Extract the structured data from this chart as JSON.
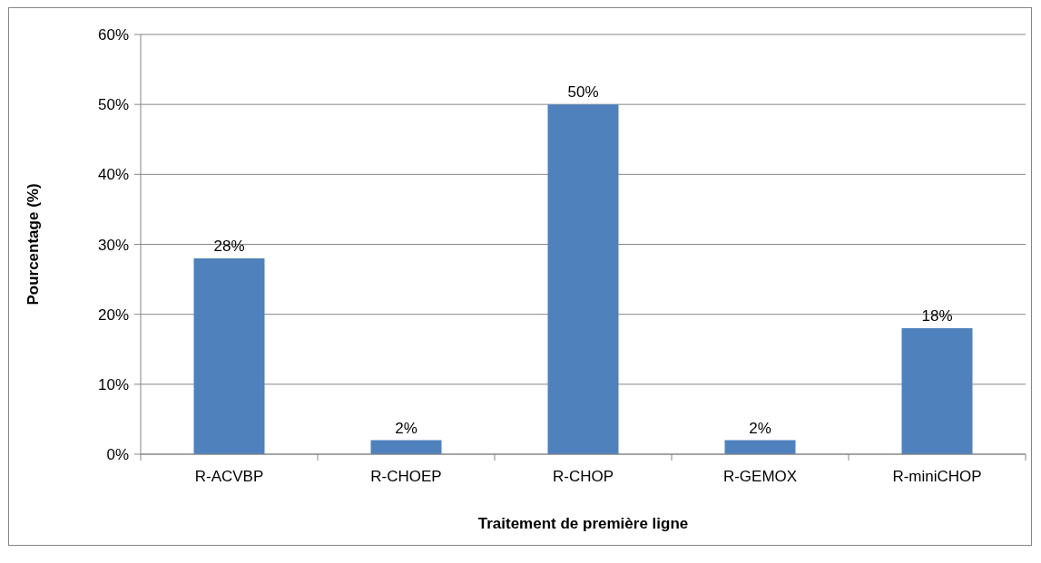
{
  "chart_data": {
    "type": "bar",
    "xlabel": "Traitement de première ligne",
    "ylabel": "Pourcentage (%)",
    "categories": [
      "R-ACVBP",
      "R-CHOEP",
      "R-CHOP",
      "R-GEMOX",
      "R-miniCHOP"
    ],
    "values": [
      28,
      2,
      50,
      2,
      18
    ],
    "color": "#4f81bd",
    "value_labels": [
      "28%",
      "2%",
      "50%",
      "2%",
      "18%"
    ],
    "ylim": [
      0,
      60
    ],
    "yticks": [
      {
        "value": 0,
        "label": "0%"
      },
      {
        "value": 10,
        "label": "10%"
      },
      {
        "value": 20,
        "label": "20%"
      },
      {
        "value": 30,
        "label": "30%"
      },
      {
        "value": 40,
        "label": "40%"
      },
      {
        "value": 50,
        "label": "50%"
      },
      {
        "value": 60,
        "label": "60%"
      }
    ],
    "grid": "y"
  }
}
